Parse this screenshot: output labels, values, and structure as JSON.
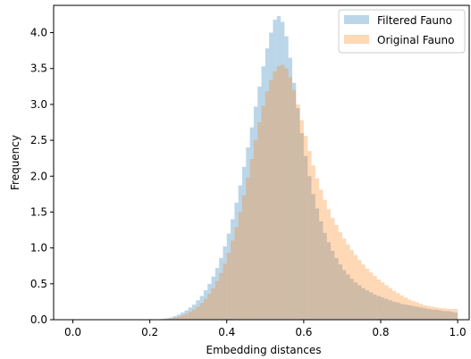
{
  "chart_data": {
    "type": "histogram",
    "xlabel": "Embedding distances",
    "ylabel": "Frequency",
    "xlim": [
      -0.05,
      1.03
    ],
    "ylim": [
      0.0,
      4.38
    ],
    "xticks": [
      0.0,
      0.2,
      0.4,
      0.6,
      0.8,
      1.0
    ],
    "xtick_labels": [
      "0.0",
      "0.2",
      "0.4",
      "0.6",
      "0.8",
      "1.0"
    ],
    "yticks": [
      0.0,
      0.5,
      1.0,
      1.5,
      2.0,
      2.5,
      3.0,
      3.5,
      4.0
    ],
    "ytick_labels": [
      "0.0",
      "0.5",
      "1.0",
      "1.5",
      "2.0",
      "2.5",
      "3.0",
      "3.5",
      "4.0"
    ],
    "legend_position": "top-right",
    "bin_range": [
      0.22,
      1.0
    ],
    "bin_count": 78,
    "series": [
      {
        "name": "Filtered Fauno",
        "color": "#1f77b4",
        "opacity": 0.3,
        "values": [
          0.0,
          0.01,
          0.02,
          0.03,
          0.05,
          0.07,
          0.1,
          0.13,
          0.17,
          0.21,
          0.27,
          0.33,
          0.41,
          0.5,
          0.6,
          0.72,
          0.86,
          1.02,
          1.2,
          1.4,
          1.63,
          1.87,
          2.13,
          2.4,
          2.68,
          2.97,
          3.25,
          3.53,
          3.78,
          4.0,
          4.18,
          4.23,
          4.15,
          3.95,
          3.65,
          3.3,
          2.95,
          2.6,
          2.28,
          2.0,
          1.75,
          1.55,
          1.37,
          1.21,
          1.08,
          0.96,
          0.86,
          0.77,
          0.69,
          0.63,
          0.57,
          0.52,
          0.48,
          0.44,
          0.41,
          0.38,
          0.35,
          0.33,
          0.31,
          0.29,
          0.27,
          0.25,
          0.24,
          0.22,
          0.21,
          0.2,
          0.19,
          0.18,
          0.17,
          0.16,
          0.15,
          0.14,
          0.14,
          0.13,
          0.12,
          0.12,
          0.11,
          0.1
        ]
      },
      {
        "name": "Original Fauno",
        "color": "#ff7f0e",
        "opacity": 0.3,
        "values": [
          0.0,
          0.01,
          0.01,
          0.02,
          0.03,
          0.04,
          0.06,
          0.08,
          0.11,
          0.14,
          0.18,
          0.23,
          0.29,
          0.36,
          0.44,
          0.54,
          0.65,
          0.78,
          0.93,
          1.1,
          1.29,
          1.5,
          1.73,
          1.98,
          2.24,
          2.5,
          2.75,
          2.98,
          3.18,
          3.34,
          3.46,
          3.53,
          3.55,
          3.5,
          3.38,
          3.2,
          3.0,
          2.78,
          2.56,
          2.35,
          2.15,
          1.97,
          1.81,
          1.67,
          1.54,
          1.42,
          1.32,
          1.22,
          1.13,
          1.05,
          0.97,
          0.9,
          0.83,
          0.77,
          0.71,
          0.66,
          0.61,
          0.56,
          0.52,
          0.48,
          0.44,
          0.4,
          0.37,
          0.34,
          0.31,
          0.28,
          0.26,
          0.24,
          0.22,
          0.2,
          0.19,
          0.18,
          0.17,
          0.16,
          0.16,
          0.15,
          0.15,
          0.15
        ]
      }
    ]
  }
}
